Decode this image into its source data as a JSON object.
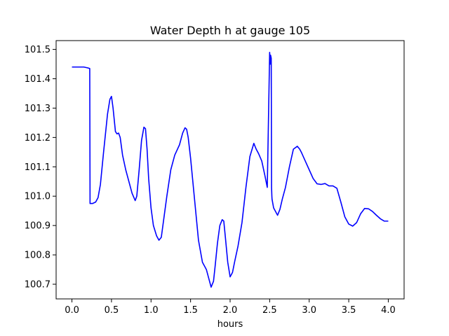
{
  "chart_data": {
    "type": "line",
    "title": "Water Depth h at gauge 105",
    "xlabel": "hours",
    "ylabel": "",
    "xlim": [
      -0.2,
      4.2
    ],
    "ylim": [
      100.65,
      101.53
    ],
    "xticks": [
      0.0,
      0.5,
      1.0,
      1.5,
      2.0,
      2.5,
      3.0,
      3.5,
      4.0
    ],
    "xtick_labels": [
      "0.0",
      "0.5",
      "1.0",
      "1.5",
      "2.0",
      "2.5",
      "3.0",
      "3.5",
      "4.0"
    ],
    "yticks": [
      100.7,
      100.8,
      100.9,
      101.0,
      101.1,
      101.2,
      101.3,
      101.4,
      101.5
    ],
    "ytick_labels": [
      "100.7",
      "100.8",
      "100.9",
      "101.0",
      "101.1",
      "101.2",
      "101.3",
      "101.4",
      "101.5"
    ],
    "grid": false,
    "series": [
      {
        "color": "#0000ff",
        "x": [
          0.0,
          0.1,
          0.15,
          0.2,
          0.225,
          0.229,
          0.26,
          0.3,
          0.33,
          0.36,
          0.4,
          0.45,
          0.48,
          0.5,
          0.52,
          0.55,
          0.57,
          0.59,
          0.61,
          0.64,
          0.68,
          0.72,
          0.76,
          0.8,
          0.82,
          0.85,
          0.88,
          0.91,
          0.93,
          0.95,
          0.97,
          1.0,
          1.03,
          1.07,
          1.1,
          1.13,
          1.17,
          1.2,
          1.25,
          1.3,
          1.36,
          1.4,
          1.43,
          1.45,
          1.47,
          1.5,
          1.55,
          1.6,
          1.65,
          1.7,
          1.73,
          1.76,
          1.79,
          1.81,
          1.84,
          1.87,
          1.9,
          1.92,
          1.94,
          1.97,
          2.0,
          2.03,
          2.06,
          2.1,
          2.15,
          2.2,
          2.25,
          2.3,
          2.33,
          2.36,
          2.4,
          2.44,
          2.47,
          2.5,
          2.509,
          2.512,
          2.52,
          2.524,
          2.528,
          2.53,
          2.55,
          2.6,
          2.63,
          2.66,
          2.7,
          2.75,
          2.8,
          2.85,
          2.88,
          2.9,
          2.95,
          3.0,
          3.05,
          3.1,
          3.15,
          3.2,
          3.25,
          3.3,
          3.35,
          3.4,
          3.45,
          3.5,
          3.55,
          3.6,
          3.65,
          3.7,
          3.75,
          3.8,
          3.85,
          3.9,
          3.95,
          4.0
        ],
        "y": [
          101.44,
          101.44,
          101.44,
          101.437,
          101.435,
          100.975,
          100.975,
          100.98,
          100.995,
          101.04,
          101.15,
          101.28,
          101.33,
          101.34,
          101.3,
          101.22,
          101.212,
          101.215,
          101.2,
          101.14,
          101.09,
          101.05,
          101.01,
          100.985,
          101.0,
          101.09,
          101.19,
          101.235,
          101.23,
          101.16,
          101.06,
          100.96,
          100.9,
          100.865,
          100.85,
          100.86,
          100.94,
          101.0,
          101.09,
          101.14,
          101.175,
          101.215,
          101.233,
          101.228,
          101.2,
          101.13,
          100.99,
          100.85,
          100.775,
          100.75,
          100.72,
          100.69,
          100.71,
          100.76,
          100.84,
          100.9,
          100.92,
          100.915,
          100.86,
          100.775,
          100.725,
          100.74,
          100.78,
          100.83,
          100.91,
          101.03,
          101.135,
          101.18,
          101.16,
          101.145,
          101.12,
          101.07,
          101.03,
          101.49,
          101.45,
          101.48,
          101.47,
          101.03,
          101.0,
          100.99,
          100.96,
          100.935,
          100.955,
          100.99,
          101.03,
          101.1,
          101.16,
          101.17,
          101.16,
          101.15,
          101.12,
          101.09,
          101.06,
          101.042,
          101.04,
          101.043,
          101.035,
          101.035,
          101.027,
          100.98,
          100.93,
          100.905,
          100.898,
          100.91,
          100.94,
          100.958,
          100.957,
          100.948,
          100.935,
          100.923,
          100.915,
          100.915
        ]
      }
    ]
  }
}
